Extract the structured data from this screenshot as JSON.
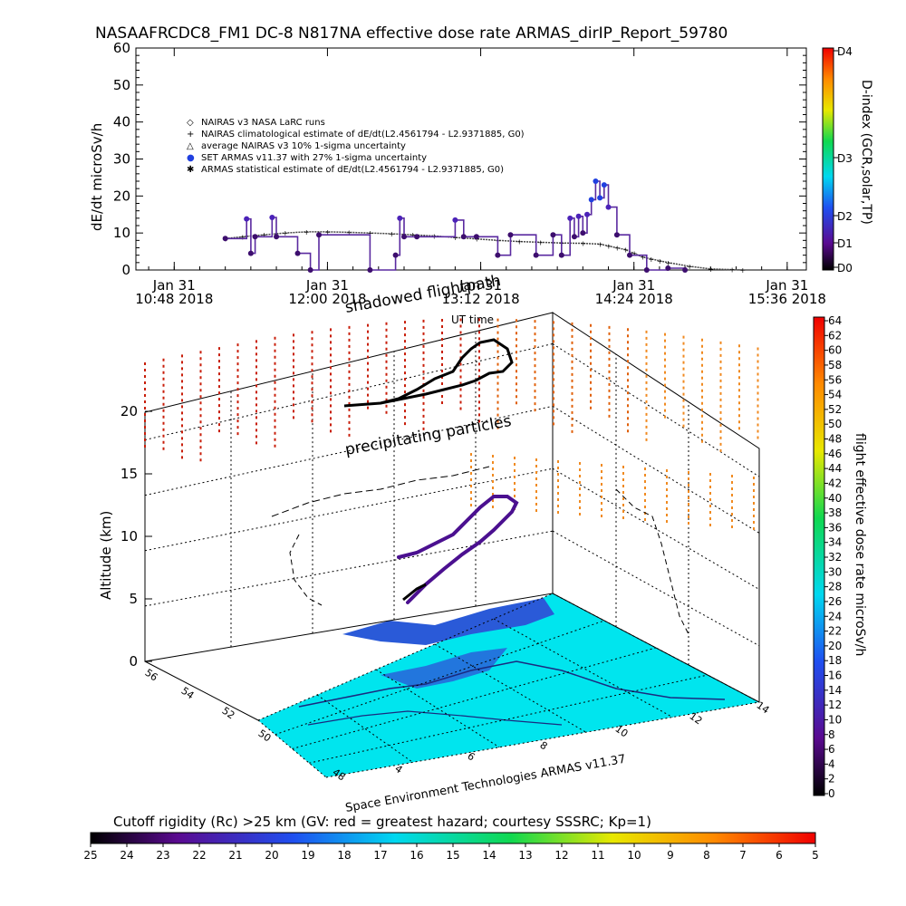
{
  "title": "NASAAFRCDC8_FM1 DC-8    N817NA effective dose rate ARMAS_dirIP_Report_59780",
  "chart_data": [
    {
      "type": "line",
      "ylabel": "dE/dt microSv/h",
      "xlabel": "UT time",
      "ylim": [
        0,
        60
      ],
      "y_ticks": [
        "0",
        "10",
        "20",
        "30",
        "40",
        "50",
        "60"
      ],
      "x_ticks": [
        {
          "line1": "Jan 31",
          "line2": "10:48 2018"
        },
        {
          "line1": "Jan 31",
          "line2": "12:00 2018"
        },
        {
          "line1": "Jan 31",
          "line2": "13:12 2018"
        },
        {
          "line1": "Jan 31",
          "line2": "14:24 2018"
        },
        {
          "line1": "Jan 31",
          "line2": "15:36 2018"
        }
      ],
      "x_ticks_min": [
        648,
        720,
        792,
        864,
        936
      ],
      "right_axis": {
        "label": "D-index (GCR,solar,TP)",
        "ticks": [
          "D0",
          "D1",
          "D2",
          "D3",
          "D4"
        ]
      },
      "legend": [
        {
          "marker": "◇",
          "label": "NAIRAS v3 NASA LaRC runs"
        },
        {
          "marker": "+",
          "label": "NAIRAS climatological estimate of dE/dt(L2.4561794 - L2.9371885, G0)"
        },
        {
          "marker": "△",
          "label": "average NAIRAS v3 10% 1-sigma uncertainty"
        },
        {
          "marker": "●",
          "label": "SET ARMAS v11.37 with 27% 1-sigma uncertainty",
          "color": "#2040e0"
        },
        {
          "marker": "✱",
          "label": "ARMAS statistical estimate of dE/dt(L2.4561794 - L2.9371885, G0)"
        }
      ],
      "series": [
        {
          "name": "NAIRAS climatological estimate",
          "x": [
            672,
            680,
            690,
            700,
            710,
            720,
            730,
            740,
            750,
            760,
            770,
            780,
            790,
            800,
            810,
            820,
            830,
            840,
            848,
            852,
            856,
            860,
            864,
            868,
            872,
            876,
            880,
            890,
            900,
            910,
            915
          ],
          "y": [
            8.5,
            9.0,
            9.5,
            10.0,
            10.3,
            10.3,
            10.2,
            10.0,
            9.8,
            9.5,
            9.2,
            8.8,
            8.4,
            8.0,
            7.7,
            7.5,
            7.3,
            7.2,
            7.0,
            6.5,
            6.0,
            5.5,
            4.5,
            3.5,
            3.0,
            2.5,
            2.0,
            1.0,
            0.3,
            0.1,
            0.0
          ]
        },
        {
          "name": "ARMAS effective dose rate",
          "x": [
            672,
            682,
            684,
            686,
            694,
            696,
            706,
            712,
            716,
            740,
            752,
            754,
            756,
            762,
            780,
            784,
            790,
            800,
            806,
            818,
            826,
            830,
            834,
            836,
            838,
            840,
            842,
            844,
            846,
            848,
            850,
            852,
            856,
            862,
            870,
            880,
            888
          ],
          "y": [
            8.5,
            13.8,
            4.5,
            9.0,
            14.2,
            9.0,
            4.5,
            0.0,
            9.5,
            0.0,
            4.0,
            14.0,
            9.0,
            9.0,
            13.5,
            9.0,
            9.0,
            4.0,
            9.5,
            4.0,
            9.5,
            4.0,
            14.0,
            9.0,
            14.5,
            10.0,
            15.0,
            19.0,
            24.0,
            19.5,
            23.0,
            17.0,
            9.5,
            4.0,
            0.0,
            0.5,
            0.0
          ]
        }
      ]
    },
    {
      "type": "scatter",
      "zlabel": "Altitude (km)",
      "z_ticks": [
        "0",
        "5",
        "10",
        "15",
        "20"
      ],
      "lat_ticks": [
        "48",
        "50",
        "52",
        "54",
        "56"
      ],
      "lon_ticks": [
        "4",
        "6",
        "8",
        "10",
        "12",
        "14"
      ],
      "annotations": [
        "shadowed flightpath",
        "precipitating particles"
      ],
      "footer": "Space Environment Technologies ARMAS v11.37",
      "colorbar_right": {
        "label": "flight effective dose rate microSv/h",
        "ticks": [
          "0",
          "2",
          "4",
          "6",
          "8",
          "10",
          "12",
          "14",
          "16",
          "18",
          "20",
          "22",
          "24",
          "26",
          "28",
          "30",
          "32",
          "34",
          "36",
          "38",
          "40",
          "42",
          "44",
          "46",
          "48",
          "50",
          "52",
          "54",
          "56",
          "58",
          "60",
          "62",
          "64"
        ]
      },
      "colorbar_bottom": {
        "label": "Cutoff rigidity (Rc) >25 km (GV: red = greatest hazard; courtesy SSSRC; Kp=1)",
        "ticks": [
          "25",
          "24",
          "23",
          "22",
          "21",
          "20",
          "19",
          "18",
          "17",
          "16",
          "15",
          "14",
          "13",
          "12",
          "11",
          "10",
          "9",
          "8",
          "7",
          "6",
          "5"
        ]
      },
      "region_color": "#00e5ee"
    }
  ]
}
